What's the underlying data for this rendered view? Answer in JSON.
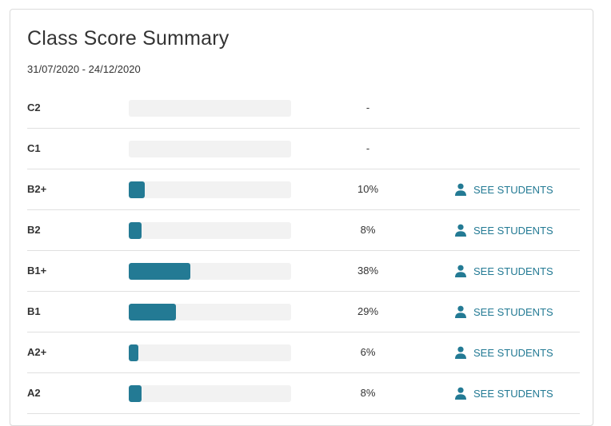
{
  "summary": {
    "title": "Class Score Summary",
    "date_range": "31/07/2020 - 24/12/2020",
    "accent_color": "#237a94",
    "rows": [
      {
        "level": "C2",
        "value": 0,
        "percent_label": "-",
        "link_label": ""
      },
      {
        "level": "C1",
        "value": 0,
        "percent_label": "-",
        "link_label": ""
      },
      {
        "level": "B2+",
        "value": 10,
        "percent_label": "10%",
        "link_label": "SEE STUDENTS",
        "link_icon": "person-icon"
      },
      {
        "level": "B2",
        "value": 8,
        "percent_label": "8%",
        "link_label": "SEE STUDENTS",
        "link_icon": "person-icon"
      },
      {
        "level": "B1+",
        "value": 38,
        "percent_label": "38%",
        "link_label": "SEE STUDENTS",
        "link_icon": "person-icon"
      },
      {
        "level": "B1",
        "value": 29,
        "percent_label": "29%",
        "link_label": "SEE STUDENTS",
        "link_icon": "person-icon"
      },
      {
        "level": "A2+",
        "value": 6,
        "percent_label": "6%",
        "link_label": "SEE STUDENTS",
        "link_icon": "person-icon"
      },
      {
        "level": "A2",
        "value": 8,
        "percent_label": "8%",
        "link_label": "SEE STUDENTS",
        "link_icon": "person-icon"
      }
    ]
  }
}
